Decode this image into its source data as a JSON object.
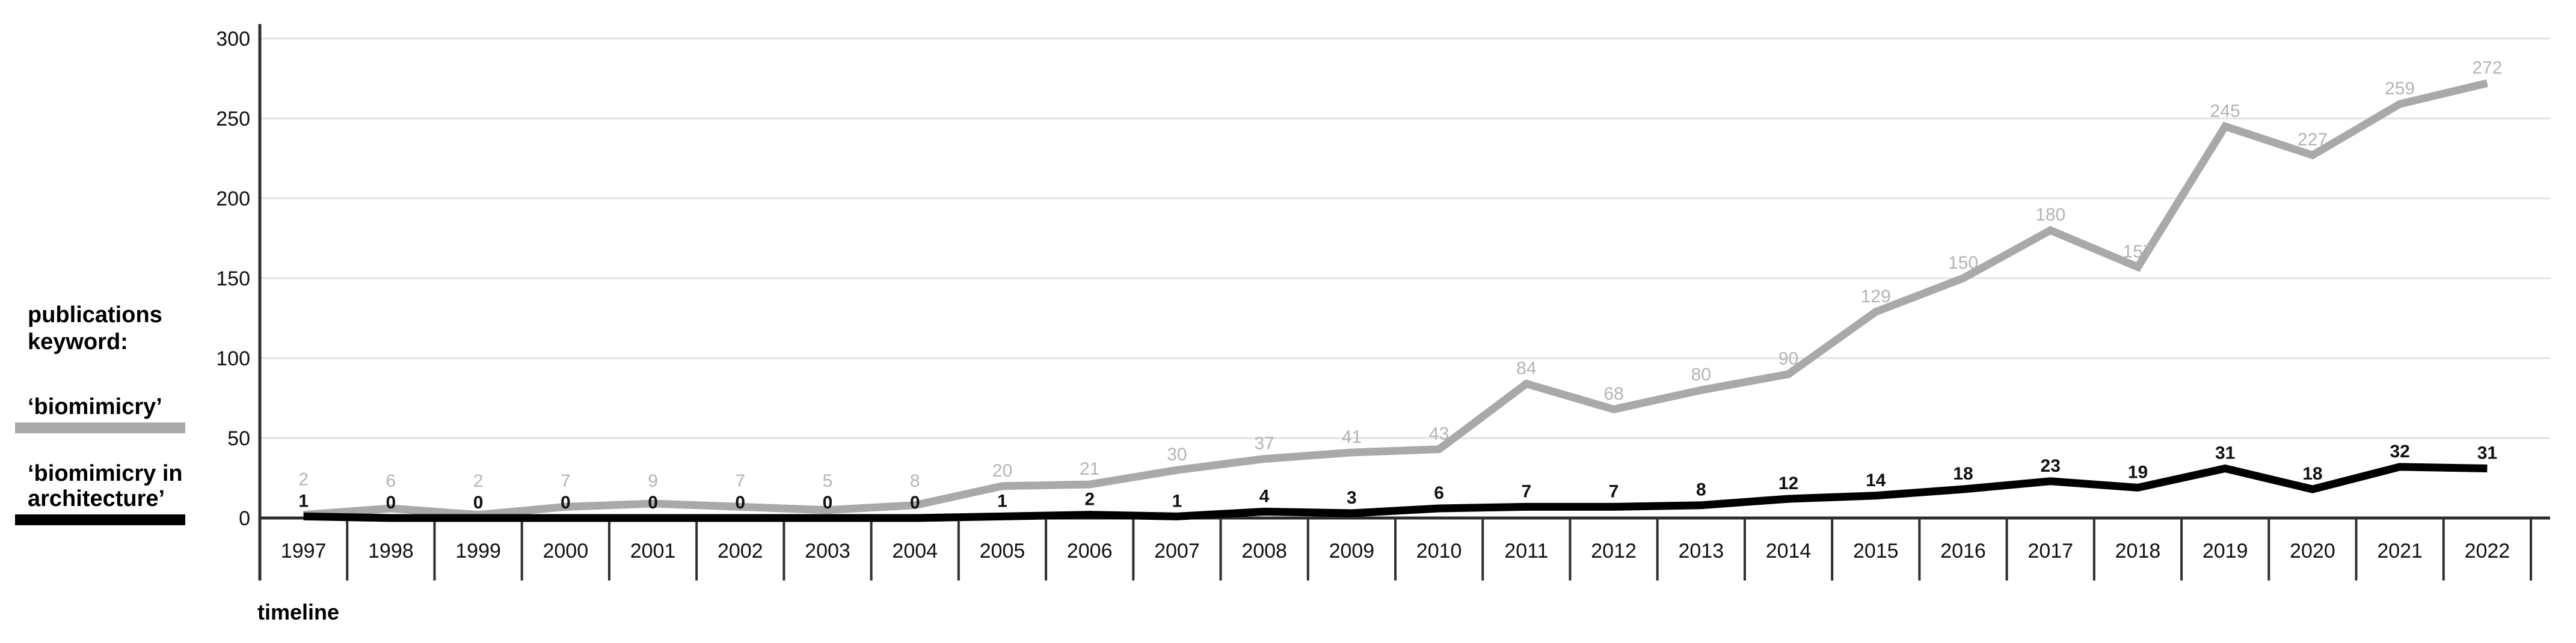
{
  "chart_data": {
    "type": "line",
    "title": "",
    "categories": [
      "1997",
      "1998",
      "1999",
      "2000",
      "2001",
      "2002",
      "2003",
      "2004",
      "2005",
      "2006",
      "2007",
      "2008",
      "2009",
      "2010",
      "2011",
      "2012",
      "2013",
      "2014",
      "2015",
      "2016",
      "2017",
      "2018",
      "2019",
      "2020",
      "2021",
      "2022"
    ],
    "series": [
      {
        "name": "‘biomimicry’",
        "values": [
          2,
          6,
          2,
          7,
          9,
          7,
          5,
          8,
          20,
          21,
          30,
          37,
          41,
          43,
          84,
          68,
          80,
          90,
          129,
          150,
          180,
          157,
          245,
          227,
          259,
          272
        ],
        "color": "#a9a9a9",
        "label_color": "#b4b4b4"
      },
      {
        "name": "‘biomimicry in architecture’",
        "values": [
          1,
          0,
          0,
          0,
          0,
          0,
          0,
          0,
          1,
          2,
          1,
          4,
          3,
          6,
          7,
          7,
          8,
          12,
          14,
          18,
          23,
          19,
          31,
          18,
          32,
          31
        ],
        "color": "#000000",
        "label_color": "#111111"
      }
    ],
    "xlabel": "timeline",
    "ylabel": "",
    "ylim": [
      0,
      300
    ],
    "yticks": [
      0,
      50,
      100,
      150,
      200,
      250,
      300
    ],
    "grid": "horizontal",
    "legend_position": "left",
    "axis_color": "#2f2f2f",
    "gridline_color": "#e3e3e3"
  },
  "legend": {
    "heading": "publications keyword:",
    "items": [
      {
        "label": "‘biomimicry’",
        "color": "#a9a9a9"
      },
      {
        "label": "‘biomimicry in architecture’",
        "color": "#000000"
      }
    ]
  }
}
